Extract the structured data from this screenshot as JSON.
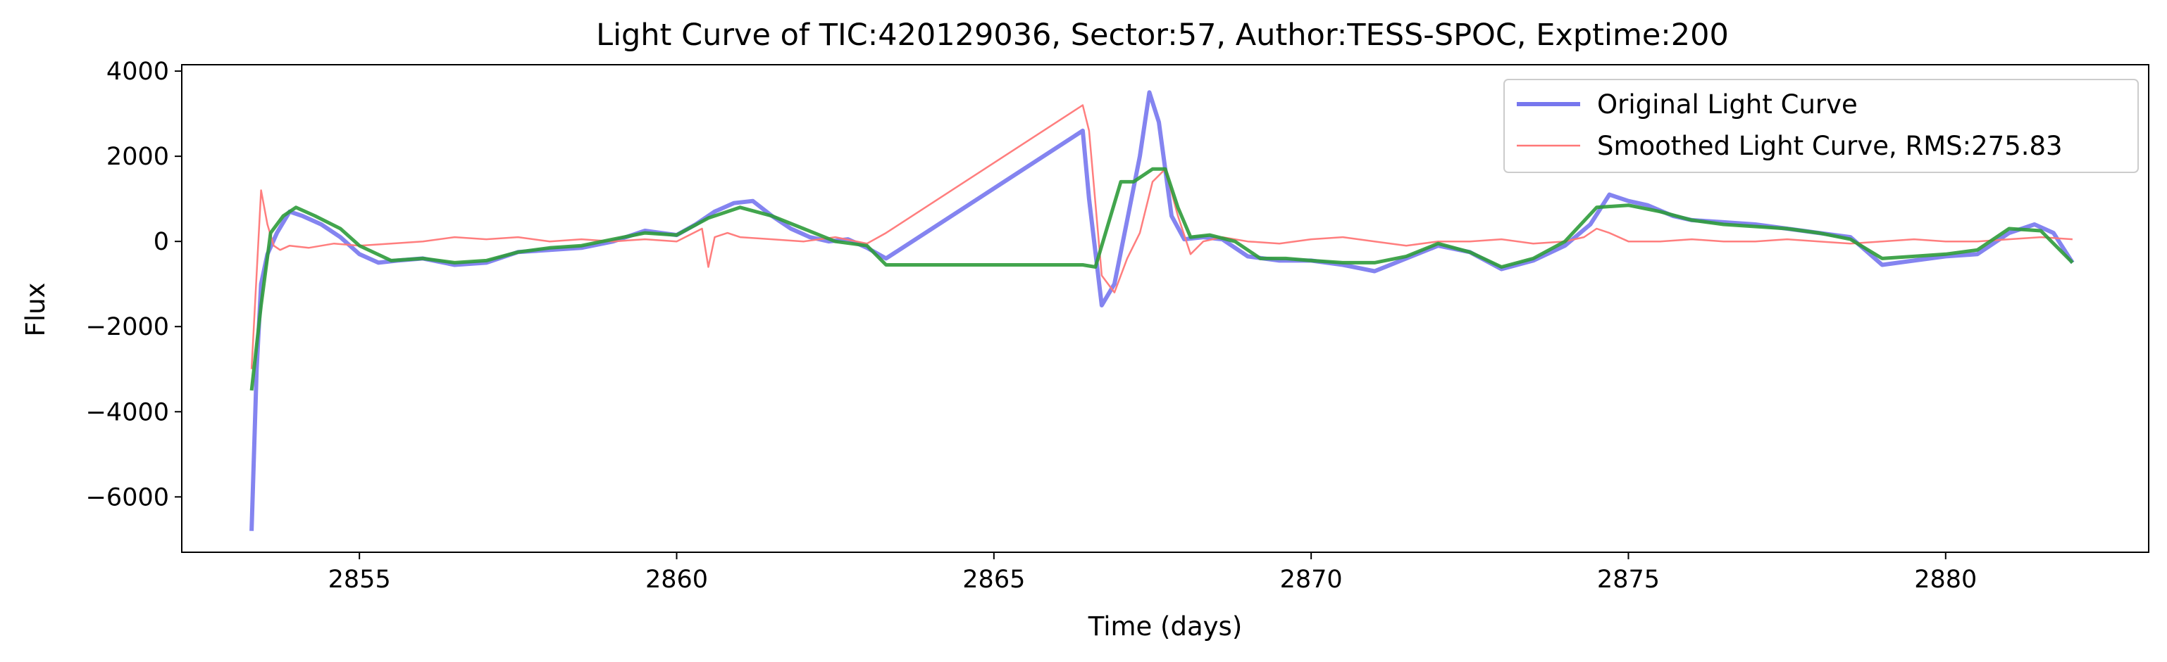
{
  "chart_data": {
    "type": "line",
    "title": "Light Curve of TIC:420129036, Sector:57, Author:TESS-SPOC, Exptime:200",
    "xlabel": "Time (days)",
    "ylabel": "Flux",
    "xlim": [
      2852.2,
      2883.2
    ],
    "ylim": [
      -7300,
      4150
    ],
    "xticks": [
      2855,
      2860,
      2865,
      2870,
      2875,
      2880
    ],
    "yticks": [
      -6000,
      -4000,
      -2000,
      0,
      2000,
      4000
    ],
    "xtick_labels": [
      "2855",
      "2860",
      "2865",
      "2870",
      "2875",
      "2880"
    ],
    "ytick_labels": [
      "−6000",
      "−4000",
      "−2000",
      "0",
      "2000",
      "4000"
    ],
    "grid": false,
    "legend_position": "upper-right",
    "legend": [
      "Original Light Curve",
      "Smoothed Light Curve, RMS:275.83"
    ],
    "series": [
      {
        "name": "Original Light Curve",
        "color": "#7777ee",
        "style": "thick",
        "x": [
          2853.3,
          2853.38,
          2853.45,
          2853.55,
          2853.7,
          2853.9,
          2854.1,
          2854.4,
          2854.7,
          2855.0,
          2855.3,
          2855.6,
          2856.0,
          2856.5,
          2857.0,
          2857.5,
          2858.0,
          2858.5,
          2859.0,
          2859.5,
          2860.0,
          2860.3,
          2860.6,
          2860.9,
          2861.2,
          2861.5,
          2861.8,
          2862.1,
          2862.4,
          2862.7,
          2863.0,
          2863.3,
          2866.4,
          2866.5,
          2866.7,
          2866.9,
          2867.1,
          2867.3,
          2867.45,
          2867.6,
          2867.8,
          2868.0,
          2868.3,
          2868.6,
          2869.0,
          2869.5,
          2870.0,
          2870.5,
          2871.0,
          2871.5,
          2872.0,
          2872.5,
          2873.0,
          2873.5,
          2874.0,
          2874.4,
          2874.7,
          2875.0,
          2875.3,
          2875.7,
          2876.0,
          2876.5,
          2877.0,
          2877.5,
          2878.0,
          2878.5,
          2879.0,
          2879.5,
          2880.0,
          2880.5,
          2881.0,
          2881.4,
          2881.7,
          2882.0
        ],
        "y": [
          -6800,
          -3000,
          -1000,
          -300,
          200,
          700,
          600,
          400,
          100,
          -300,
          -500,
          -450,
          -400,
          -550,
          -500,
          -250,
          -200,
          -150,
          0,
          250,
          150,
          400,
          700,
          900,
          950,
          600,
          300,
          100,
          0,
          50,
          -150,
          -400,
          2600,
          1000,
          -1500,
          -1000,
          500,
          2000,
          3500,
          2800,
          600,
          50,
          100,
          50,
          -350,
          -450,
          -450,
          -550,
          -700,
          -400,
          -100,
          -250,
          -650,
          -450,
          -100,
          400,
          1100,
          950,
          850,
          600,
          500,
          450,
          400,
          300,
          200,
          100,
          -550,
          -450,
          -350,
          -300,
          200,
          400,
          200,
          -500
        ]
      },
      {
        "name": "Smoothed Light Curve, RMS:275.83",
        "color": "#ff7777",
        "style": "thin",
        "x": [
          2853.3,
          2853.45,
          2853.55,
          2853.65,
          2853.75,
          2853.9,
          2854.2,
          2854.6,
          2855.0,
          2855.5,
          2856.0,
          2856.5,
          2857.0,
          2857.5,
          2858.0,
          2858.5,
          2859.0,
          2859.5,
          2860.0,
          2860.4,
          2860.5,
          2860.6,
          2860.8,
          2861.0,
          2861.5,
          2862.0,
          2862.5,
          2863.0,
          2863.3,
          2866.4,
          2866.5,
          2866.7,
          2866.9,
          2867.1,
          2867.3,
          2867.5,
          2867.7,
          2867.9,
          2868.1,
          2868.3,
          2868.6,
          2869.0,
          2869.5,
          2870.0,
          2870.5,
          2871.0,
          2871.5,
          2872.0,
          2872.5,
          2873.0,
          2873.5,
          2874.0,
          2874.3,
          2874.5,
          2874.7,
          2875.0,
          2875.5,
          2876.0,
          2876.5,
          2877.0,
          2877.5,
          2878.0,
          2878.5,
          2879.0,
          2879.5,
          2880.0,
          2880.5,
          2881.0,
          2881.5,
          2882.0
        ],
        "y": [
          -3000,
          1200,
          400,
          -100,
          -200,
          -100,
          -150,
          -50,
          -100,
          -50,
          0,
          100,
          50,
          100,
          0,
          50,
          0,
          50,
          0,
          300,
          -600,
          100,
          200,
          100,
          50,
          0,
          100,
          -50,
          200,
          3200,
          2600,
          -800,
          -1200,
          -400,
          200,
          1400,
          1700,
          600,
          -300,
          0,
          100,
          0,
          -50,
          50,
          100,
          0,
          -100,
          0,
          0,
          50,
          -50,
          0,
          100,
          300,
          200,
          0,
          0,
          50,
          0,
          0,
          50,
          0,
          -50,
          0,
          50,
          0,
          0,
          50,
          100,
          50
        ]
      },
      {
        "name": "",
        "color": "#2e9b3a",
        "style": "medium",
        "x": [
          2853.3,
          2853.45,
          2853.6,
          2853.8,
          2854.0,
          2854.3,
          2854.7,
          2855.0,
          2855.5,
          2856.0,
          2856.5,
          2857.0,
          2857.5,
          2858.0,
          2858.5,
          2859.0,
          2859.5,
          2860.0,
          2860.5,
          2861.0,
          2861.5,
          2862.0,
          2862.5,
          2863.0,
          2863.3,
          2866.4,
          2866.6,
          2866.8,
          2867.0,
          2867.2,
          2867.5,
          2867.7,
          2867.9,
          2868.1,
          2868.4,
          2868.8,
          2869.2,
          2869.6,
          2870.0,
          2870.5,
          2871.0,
          2871.5,
          2872.0,
          2872.5,
          2873.0,
          2873.5,
          2874.0,
          2874.5,
          2875.0,
          2875.5,
          2876.0,
          2876.5,
          2877.0,
          2877.5,
          2878.0,
          2878.5,
          2879.0,
          2879.5,
          2880.0,
          2880.5,
          2881.0,
          2881.5,
          2882.0
        ],
        "y": [
          -3500,
          -1500,
          200,
          600,
          800,
          600,
          300,
          -100,
          -450,
          -400,
          -500,
          -450,
          -250,
          -150,
          -100,
          50,
          200,
          150,
          550,
          800,
          600,
          300,
          0,
          -100,
          -550,
          -550,
          -600,
          400,
          1400,
          1400,
          1700,
          1700,
          800,
          100,
          150,
          0,
          -400,
          -400,
          -450,
          -500,
          -500,
          -350,
          -50,
          -250,
          -600,
          -400,
          0,
          800,
          850,
          700,
          500,
          400,
          350,
          300,
          200,
          50,
          -400,
          -350,
          -300,
          -200,
          300,
          250,
          -500
        ]
      }
    ]
  }
}
